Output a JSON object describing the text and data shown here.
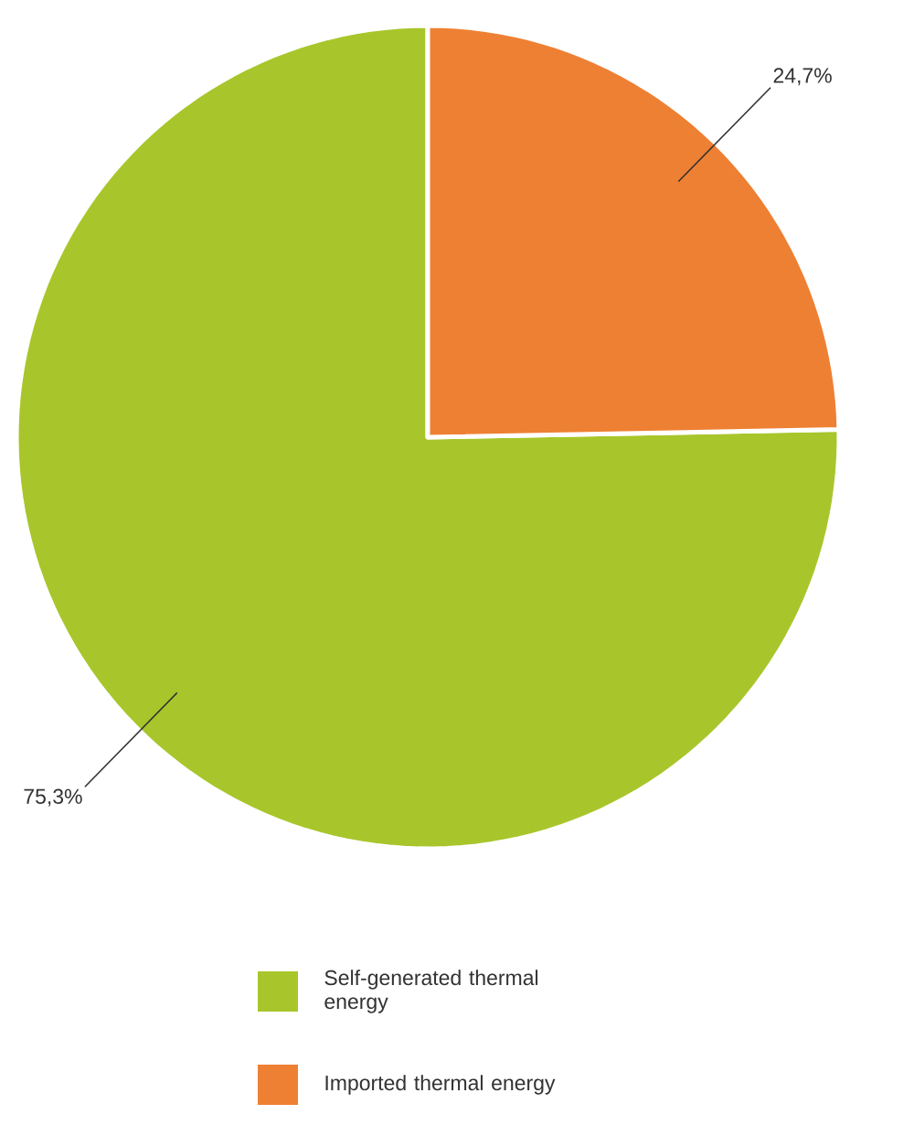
{
  "chart_data": {
    "type": "pie",
    "categories": [
      "Self-generated thermal energy",
      "Imported thermal energy"
    ],
    "values": [
      75.3,
      24.7
    ],
    "colors": [
      "#a8c62b",
      "#ee8033"
    ],
    "value_labels": [
      "75,3%",
      "24,7%"
    ],
    "legend": "bottom"
  }
}
